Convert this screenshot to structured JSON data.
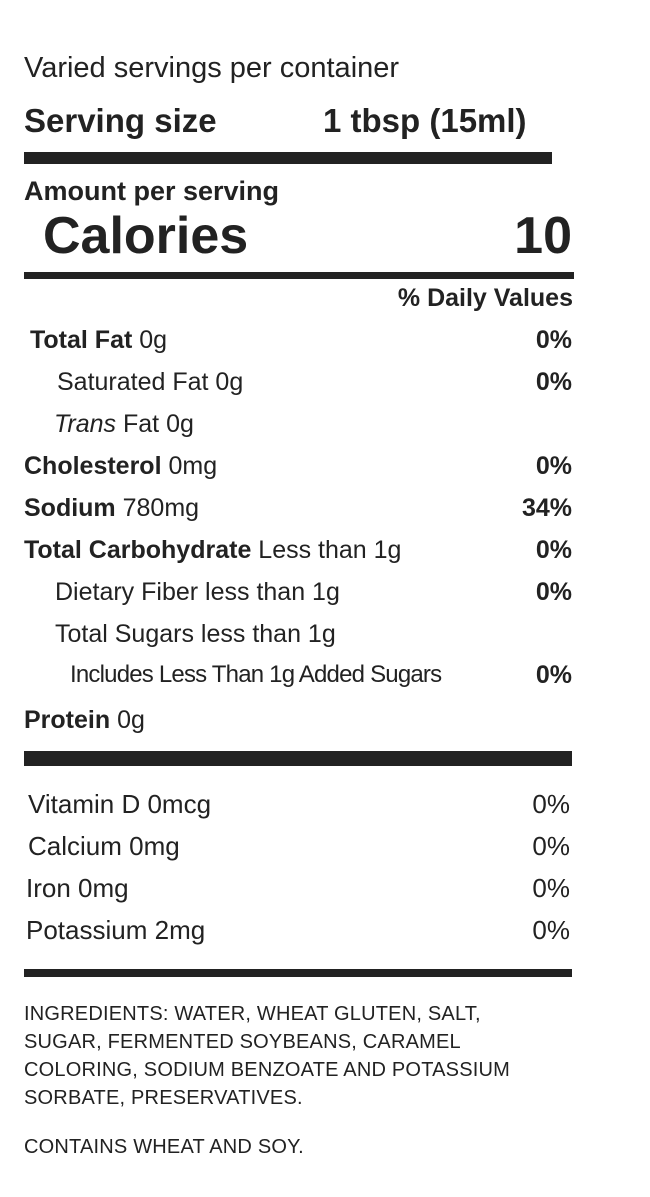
{
  "header": {
    "servings_per_container": "Varied servings per container",
    "serving_size_label": "Serving size",
    "serving_size_value": "1 tbsp (15ml)"
  },
  "calories": {
    "amount_per_serving": "Amount per serving",
    "label": "Calories",
    "value": "10"
  },
  "daily_values_header": "% Daily Values",
  "nutrients": [
    {
      "name": "Total Fat",
      "amount": " 0g",
      "dv": "0%"
    },
    {
      "name": "Saturated Fat 0g",
      "dv": "0%"
    },
    {
      "name_italic": "Trans",
      "name_rest": " Fat 0g"
    },
    {
      "name": "Cholesterol",
      "amount": " 0mg",
      "dv": "0%"
    },
    {
      "name": "Sodium",
      "amount": " 780mg",
      "dv": "34%"
    },
    {
      "name": "Total Carbohydrate",
      "amount": " Less than 1g",
      "dv": "0%"
    },
    {
      "name": "Dietary Fiber less than 1g",
      "dv": "0%"
    },
    {
      "name": "Total Sugars less than 1g"
    },
    {
      "name": "Includes Less Than 1g Added Sugars",
      "dv": "0%"
    },
    {
      "name": "Protein",
      "amount": " 0g"
    }
  ],
  "vitamins": [
    {
      "name": "Vitamin D 0mcg",
      "dv": "0%"
    },
    {
      "name": "Calcium 0mg",
      "dv": "0%"
    },
    {
      "name": "Iron 0mg",
      "dv": "0%"
    },
    {
      "name": "Potassium 2mg",
      "dv": "0%"
    }
  ],
  "ingredients": [
    "INGREDIENTS: WATER, WHEAT GLUTEN, SALT,",
    "SUGAR, FERMENTED SOYBEANS, CARAMEL",
    "COLORING, SODIUM BENZOATE AND POTASSIUM",
    "SORBATE, PRESERVATIVES."
  ],
  "allergen": "CONTAINS WHEAT AND SOY."
}
